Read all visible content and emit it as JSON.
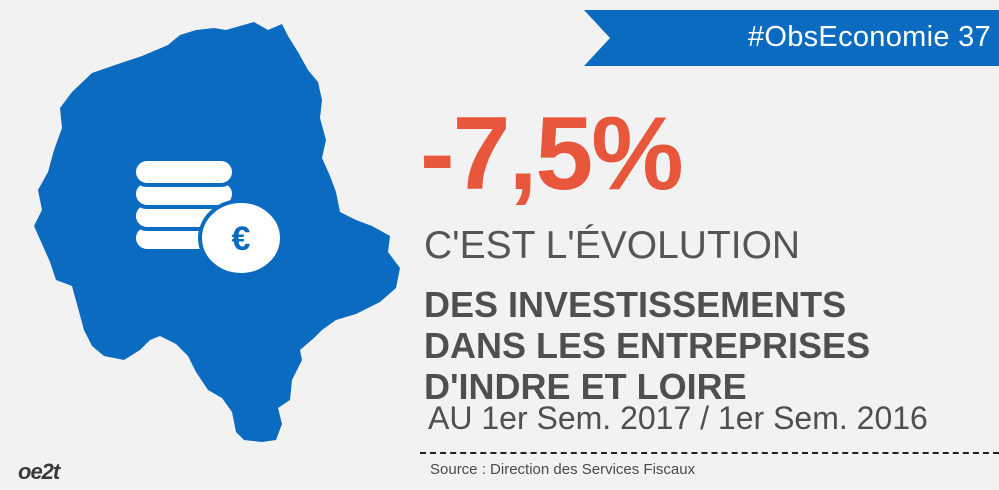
{
  "banner": {
    "hashtag": "#ObsEconomie 37"
  },
  "stat": {
    "value": "-7,5%",
    "evolution_label": "C'EST L'ÉVOLUTION",
    "subject_lines": [
      "DES INVESTISSEMENTS",
      "DANS LES ENTREPRISES",
      "D'INDRE ET LOIRE"
    ],
    "period": "AU 1er Sem. 2017 / 1er Sem. 2016"
  },
  "source": "Source : Direction des Services Fiscaux",
  "logo": {
    "text": "oe2t"
  },
  "icons": {
    "map": "department-map-icon",
    "coins": "coins-stack-icon",
    "euro": "euro-coin-icon"
  },
  "colors": {
    "brand_blue": "#0a6bc0",
    "accent_orange": "#e8573c",
    "text_gray": "#4f4f4f",
    "background": "#f2f2f2"
  }
}
